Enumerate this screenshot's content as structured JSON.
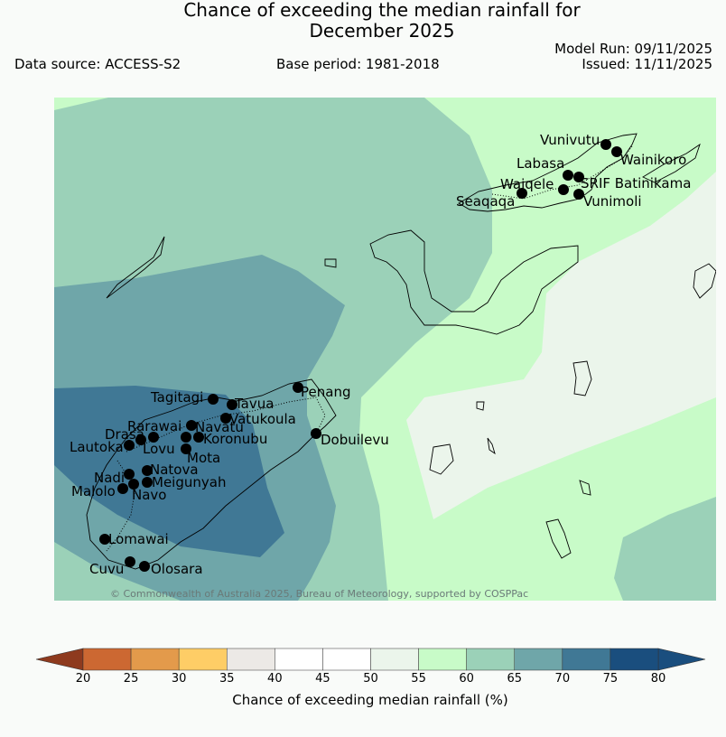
{
  "header": {
    "title_line1": "Chance of exceeding the median rainfall for",
    "title_line2": "December 2025",
    "data_source": "Data source: ACCESS-S2",
    "base_period": "Base period: 1981-2018",
    "model_run": "Model Run: 09/11/2025",
    "issued": "Issued: 11/11/2025"
  },
  "map": {
    "copyright": "© Commonwealth of Australia 2025, Bureau of Meteorology, supported by COSPPac",
    "stations": [
      {
        "name": "Vunivutu"
      },
      {
        "name": "Wainikoro"
      },
      {
        "name": "Labasa"
      },
      {
        "name": "SRIF Batinikama"
      },
      {
        "name": "Waiqele"
      },
      {
        "name": "Vunimoli"
      },
      {
        "name": "Seaqaqa"
      },
      {
        "name": "Penang"
      },
      {
        "name": "Tagitagi"
      },
      {
        "name": "Tavua"
      },
      {
        "name": "Vatukoula"
      },
      {
        "name": "Rarawai"
      },
      {
        "name": "Navatu"
      },
      {
        "name": "Drasa"
      },
      {
        "name": "Koronubu"
      },
      {
        "name": "Lautoka"
      },
      {
        "name": "Lovu"
      },
      {
        "name": "Mota"
      },
      {
        "name": "Dobuilevu"
      },
      {
        "name": "Natova"
      },
      {
        "name": "Nadi"
      },
      {
        "name": "Meigunyah"
      },
      {
        "name": "Malolo"
      },
      {
        "name": "Navo"
      },
      {
        "name": "Lomawai"
      },
      {
        "name": "Cuvu"
      },
      {
        "name": "Olosara"
      }
    ]
  },
  "colorbar": {
    "title": "Chance of exceeding median rainfall (%)",
    "ticks": [
      "20",
      "25",
      "30",
      "35",
      "40",
      "45",
      "50",
      "55",
      "60",
      "65",
      "70",
      "75",
      "80"
    ],
    "colors": [
      "#b34a26",
      "#cc6832",
      "#e39a4b",
      "#fecd66",
      "#ece9e6",
      "#ffffff",
      "#ffffff",
      "#ebf5eb",
      "#c8fbc8",
      "#9bd1b8",
      "#6fa6a9",
      "#407895",
      "#1a4e7e"
    ]
  }
}
